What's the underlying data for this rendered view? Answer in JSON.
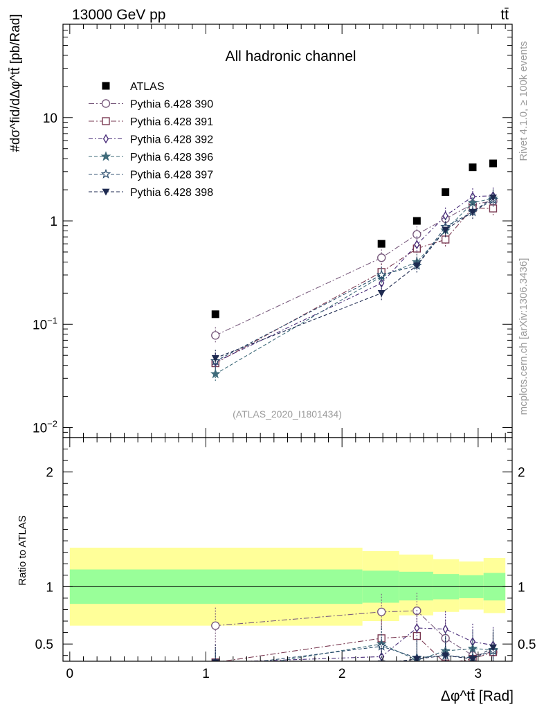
{
  "header": {
    "left": "13000 GeV pp",
    "right": "tt̄"
  },
  "side_labels": {
    "rivet": "Rivet 4.1.0, ≥ 100k events",
    "mcplots": "mcplots.cern.ch [arXiv:1306.3436]"
  },
  "colors": {
    "atlas": "#000000",
    "s390": "#7a5c7e",
    "s391": "#7a3a52",
    "s392": "#4a2e7a",
    "s396": "#3f6b7a",
    "s397": "#2c4e6e",
    "s398": "#1e2a50",
    "band_inner": "#99ff99",
    "band_outer": "#ffff99"
  },
  "chart_data": [
    {
      "type": "scatter",
      "title": "All hadronic channel",
      "ylabel": "#dσ^fid/dΔφ^tt̄ [pb/Rad]",
      "xlabel": "",
      "yscale": "log",
      "ylim": [
        0.008,
        80
      ],
      "xlim": [
        -0.05,
        3.25
      ],
      "y_tick_labels": [
        "10^−2",
        "10^−1",
        "1",
        "10"
      ],
      "watermark": "(ATLAS_2020_I1801434)",
      "legend": [
        {
          "label": "ATLAS",
          "marker": "filled-square"
        },
        {
          "label": "Pythia 6.428 390",
          "marker": "open-circle"
        },
        {
          "label": "Pythia 6.428 391",
          "marker": "open-square"
        },
        {
          "label": "Pythia 6.428 392",
          "marker": "open-diamond"
        },
        {
          "label": "Pythia 6.428 396",
          "marker": "filled-star"
        },
        {
          "label": "Pythia 6.428 397",
          "marker": "open-star"
        },
        {
          "label": "Pythia 6.428 398",
          "marker": "filled-triangle-down"
        }
      ],
      "x": [
        1.07,
        2.29,
        2.55,
        2.76,
        2.96,
        3.11
      ],
      "series": [
        {
          "name": "ATLAS",
          "values": [
            0.125,
            0.6,
            1.0,
            1.9,
            3.3,
            3.6
          ]
        },
        {
          "name": "Pythia 6.428 390",
          "values": [
            0.078,
            0.44,
            0.74,
            1.05,
            1.45,
            1.55
          ]
        },
        {
          "name": "Pythia 6.428 391",
          "values": [
            0.042,
            0.32,
            0.54,
            0.66,
            1.33,
            1.32
          ]
        },
        {
          "name": "Pythia 6.428 392",
          "values": [
            0.043,
            0.25,
            0.59,
            1.12,
            1.72,
            1.75
          ]
        },
        {
          "name": "Pythia 6.428 396",
          "values": [
            0.033,
            0.29,
            0.4,
            0.81,
            1.5,
            1.65
          ]
        },
        {
          "name": "Pythia 6.428 397",
          "values": [
            0.044,
            0.3,
            0.37,
            0.88,
            1.22,
            1.6
          ]
        },
        {
          "name": "Pythia 6.428 398",
          "values": [
            0.047,
            0.2,
            0.37,
            0.82,
            1.22,
            1.68
          ]
        }
      ]
    },
    {
      "type": "scatter",
      "title": "",
      "ylabel": "Ratio to ATLAS",
      "xlabel": "Δφ^tt̄ [Rad]",
      "ylim": [
        0.35,
        2.3
      ],
      "xlim": [
        -0.05,
        3.25
      ],
      "y_tick_labels": [
        "0.5",
        "1",
        "2"
      ],
      "x_tick_labels": [
        "0",
        "1",
        "2",
        "3"
      ],
      "bins": [
        0.0,
        2.15,
        2.42,
        2.67,
        2.86,
        3.04,
        3.2
      ],
      "band_inner": [
        [
          0.85,
          1.15
        ],
        [
          0.86,
          1.14
        ],
        [
          0.88,
          1.13
        ],
        [
          0.89,
          1.11
        ],
        [
          0.9,
          1.1
        ],
        [
          0.88,
          1.12
        ]
      ],
      "band_outer": [
        [
          0.66,
          1.34
        ],
        [
          0.7,
          1.31
        ],
        [
          0.75,
          1.28
        ],
        [
          0.78,
          1.24
        ],
        [
          0.8,
          1.22
        ],
        [
          0.77,
          1.25
        ]
      ],
      "x": [
        1.07,
        2.29,
        2.55,
        2.76,
        2.96,
        3.11
      ],
      "series": [
        {
          "name": "Pythia 6.428 390",
          "values": [
            0.66,
            0.78,
            0.79,
            0.55,
            0.4,
            0.43
          ]
        },
        {
          "name": "Pythia 6.428 391",
          "values": [
            0.34,
            0.55,
            0.57,
            0.33,
            0.37,
            0.43
          ]
        },
        {
          "name": "Pythia 6.428 392",
          "values": [
            0.34,
            0.39,
            0.64,
            0.63,
            0.52,
            0.49
          ]
        },
        {
          "name": "Pythia 6.428 396",
          "values": [
            0.26,
            0.5,
            0.36,
            0.44,
            0.46,
            0.45
          ]
        },
        {
          "name": "Pythia 6.428 397",
          "values": [
            0.3,
            0.48,
            0.38,
            0.4,
            0.38,
            0.44
          ]
        },
        {
          "name": "Pythia 6.428 398",
          "values": [
            0.34,
            0.33,
            0.37,
            0.4,
            0.37,
            0.47
          ]
        }
      ]
    }
  ]
}
